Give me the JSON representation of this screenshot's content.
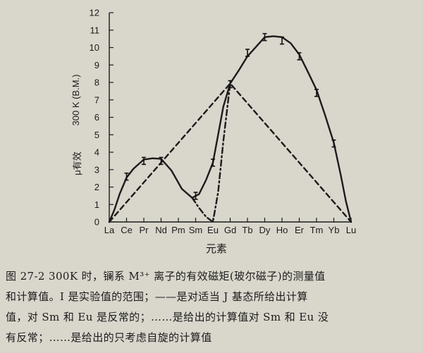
{
  "chart_data": {
    "type": "line",
    "ylabel_top": "300 K (B.M.)",
    "ylabel_bottom": "μ有效",
    "xlabel": "元素",
    "categories": [
      "La",
      "Ce",
      "Pr",
      "Nd",
      "Pm",
      "Sm",
      "Eu",
      "Gd",
      "Tb",
      "Dy",
      "Ho",
      "Er",
      "Tm",
      "Yb",
      "Lu"
    ],
    "yticks": [
      "0",
      "1",
      "2",
      "3",
      "4",
      "5",
      "6",
      "7",
      "8",
      "9",
      "10",
      "11",
      "12"
    ],
    "ylim": [
      0,
      12
    ],
    "series": [
      {
        "style": "solid",
        "x": [
          0,
          0.3,
          0.6,
          1,
          1.4,
          2,
          2.5,
          3,
          3.6,
          4.2,
          4.8,
          5.2,
          5.6,
          6.0,
          6.3,
          6.6,
          7,
          7.5,
          8,
          8.5,
          9,
          9.5,
          10,
          10.5,
          11,
          11.5,
          12,
          12.5,
          13,
          13.4,
          13.7,
          14
        ],
        "y": [
          0,
          0.7,
          1.6,
          2.54,
          3.05,
          3.58,
          3.65,
          3.62,
          2.95,
          1.9,
          1.38,
          1.6,
          2.4,
          3.4,
          5.0,
          6.6,
          7.94,
          8.7,
          9.5,
          10.05,
          10.6,
          10.65,
          10.6,
          10.25,
          9.6,
          8.6,
          7.57,
          6.1,
          4.54,
          2.7,
          1.2,
          0
        ]
      },
      {
        "style": "dash-dot",
        "x": [
          4.8,
          5.2,
          5.6,
          6.0,
          6.3,
          6.6,
          7
        ],
        "y": [
          1.38,
          0.8,
          0.3,
          0,
          1.7,
          4.6,
          7.94
        ]
      },
      {
        "style": "dashed",
        "x": [
          0,
          7,
          14
        ],
        "y": [
          0,
          7.94,
          0
        ]
      }
    ],
    "error_bars": [
      {
        "x": 1,
        "y": 2.6,
        "err": 0.2
      },
      {
        "x": 2,
        "y": 3.5,
        "err": 0.2
      },
      {
        "x": 3,
        "y": 3.5,
        "err": 0.2
      },
      {
        "x": 5,
        "y": 1.5,
        "err": 0.2
      },
      {
        "x": 6,
        "y": 3.4,
        "err": 0.2
      },
      {
        "x": 7,
        "y": 7.9,
        "err": 0.2
      },
      {
        "x": 8,
        "y": 9.7,
        "err": 0.2
      },
      {
        "x": 9,
        "y": 10.6,
        "err": 0.2
      },
      {
        "x": 10,
        "y": 10.4,
        "err": 0.2
      },
      {
        "x": 11,
        "y": 9.5,
        "err": 0.2
      },
      {
        "x": 12,
        "y": 7.4,
        "err": 0.2
      },
      {
        "x": 13,
        "y": 4.5,
        "err": 0.2
      }
    ]
  },
  "caption": {
    "line1": "图 27-2   300K 时，镧系 M³⁺ 离子的有效磁矩(玻尔磁子)的测量值",
    "line2": "和计算值。I 是实验值的范围；——是对适当 J 基态所给出计算",
    "line3": "值，对 Sm 和 Eu 是反常的；……是给出的计算值对 Sm 和 Eu 没",
    "line4": "有反常；……是给出的只考虑自旋的计算值"
  }
}
